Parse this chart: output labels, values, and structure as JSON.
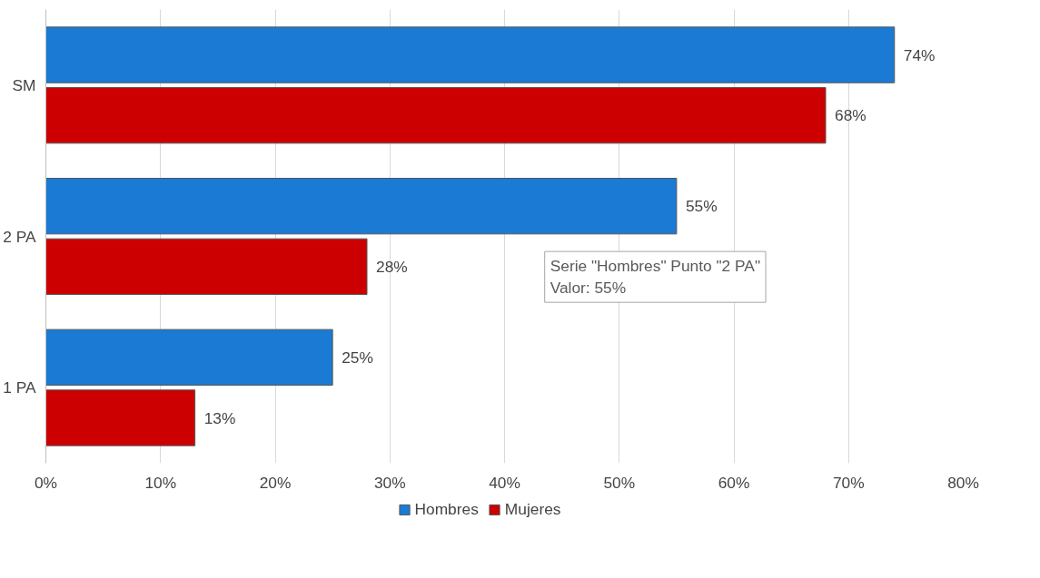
{
  "chart_data": {
    "type": "bar",
    "orientation": "horizontal",
    "categories": [
      "SM",
      "2 PA",
      "1 PA"
    ],
    "series": [
      {
        "name": "Hombres",
        "color": "#1a7ad4",
        "values": [
          74,
          55,
          25
        ],
        "value_labels": [
          "74%",
          "55%",
          "25%"
        ]
      },
      {
        "name": "Mujeres",
        "color": "#cc0000",
        "values": [
          68,
          28,
          13
        ],
        "value_labels": [
          "68%",
          "28%",
          "13%"
        ]
      }
    ],
    "xlim": [
      0,
      80
    ],
    "xticks": [
      {
        "value": 0,
        "label": "0%"
      },
      {
        "value": 10,
        "label": "10%"
      },
      {
        "value": 20,
        "label": "20%"
      },
      {
        "value": 30,
        "label": "30%"
      },
      {
        "value": 40,
        "label": "40%"
      },
      {
        "value": 50,
        "label": "50%"
      },
      {
        "value": 60,
        "label": "60%"
      },
      {
        "value": 70,
        "label": "70%"
      },
      {
        "value": 80,
        "label": "80%"
      }
    ],
    "grid": "x",
    "legend": "bottom",
    "annotations": [
      "Serie \"Hombres\" Punto \"2 PA\"\nValor: 55%"
    ]
  }
}
